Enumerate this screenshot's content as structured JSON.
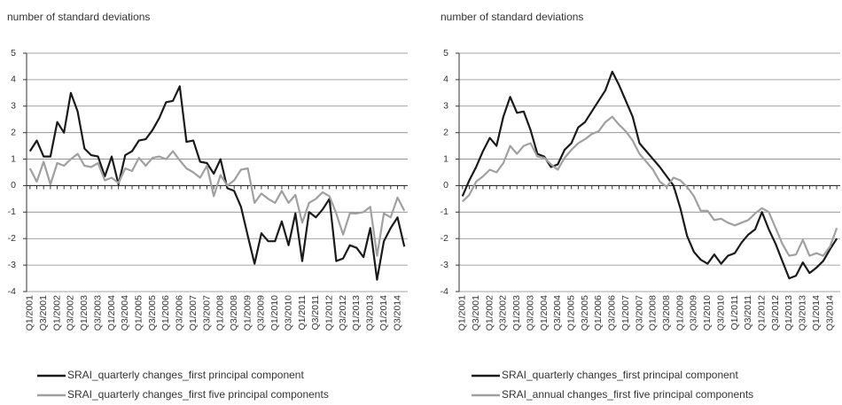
{
  "chart_data": [
    {
      "type": "line",
      "title": "number of standard deviations",
      "categories": [
        "Q1/2001",
        null,
        "Q3/2001",
        null,
        "Q1/2002",
        null,
        "Q3/2002",
        null,
        "Q1/2003",
        null,
        "Q3/2003",
        null,
        "Q1/2004",
        null,
        "Q3/2004",
        null,
        "Q1/2005",
        null,
        "Q3/2005",
        null,
        "Q1/2006",
        null,
        "Q3/2006",
        null,
        "Q1/2007",
        null,
        "Q3/2007",
        null,
        "Q1/2008",
        null,
        "Q3/2008",
        null,
        "Q1/2009",
        null,
        "Q3/2009",
        null,
        "Q1/2010",
        null,
        "Q3/2010",
        null,
        "Q1/2011",
        null,
        "Q3/2011",
        null,
        "Q1/2012",
        null,
        "Q3/2012",
        null,
        "Q1/2013",
        null,
        "Q3/2013",
        null,
        "Q1/2014",
        null,
        "Q3/2014",
        null
      ],
      "series": [
        {
          "name": "SRAI_quarterly changes_first principal component",
          "color": "#1a1a1a",
          "values": [
            1.3,
            1.7,
            1.1,
            1.1,
            2.4,
            2.0,
            3.5,
            2.8,
            1.4,
            1.15,
            1.1,
            0.35,
            1.1,
            0.05,
            1.15,
            1.3,
            1.7,
            1.75,
            2.1,
            2.55,
            3.15,
            3.2,
            3.75,
            1.65,
            1.7,
            0.9,
            0.85,
            0.45,
            1.0,
            -0.1,
            -0.2,
            -0.8,
            -1.9,
            -2.95,
            -1.8,
            -2.1,
            -2.1,
            -1.35,
            -2.25,
            -1.05,
            -2.85,
            -1.0,
            -1.2,
            -0.9,
            -0.5,
            -2.85,
            -2.75,
            -2.25,
            -2.35,
            -2.7,
            -1.6,
            -3.55,
            -2.1,
            -1.6,
            -1.2,
            -2.3
          ]
        },
        {
          "name": "SRAI_quarterly changes_first five principal components",
          "color": "#a0a0a0",
          "values": [
            0.65,
            0.15,
            0.9,
            0.05,
            0.85,
            0.75,
            1.0,
            1.2,
            0.75,
            0.7,
            0.85,
            0.2,
            0.3,
            0.1,
            0.65,
            0.55,
            1.05,
            0.75,
            1.05,
            1.1,
            1.0,
            1.3,
            0.95,
            0.65,
            0.5,
            0.3,
            0.75,
            -0.4,
            0.4,
            0.0,
            0.2,
            0.6,
            0.65,
            -0.65,
            -0.3,
            -0.5,
            -0.65,
            -0.2,
            -0.65,
            -0.35,
            -1.4,
            -0.65,
            -0.5,
            -0.25,
            -0.4,
            -1.05,
            -1.85,
            -1.05,
            -1.05,
            -1.0,
            -0.8,
            -2.65,
            -1.05,
            -1.2,
            -0.45,
            -0.95
          ]
        }
      ],
      "ylim": [
        -4,
        5
      ],
      "yticks": [
        -4,
        -3,
        -2,
        -1,
        0,
        1,
        2,
        3,
        4,
        5
      ],
      "grid": true,
      "legend": "bottom"
    },
    {
      "type": "line",
      "title": "number of standard deviations",
      "categories": [
        "Q1/2001",
        null,
        "Q3/2001",
        null,
        "Q1/2002",
        null,
        "Q3/2002",
        null,
        "Q1/2003",
        null,
        "Q3/2003",
        null,
        "Q1/2004",
        null,
        "Q3/2004",
        null,
        "Q1/2005",
        null,
        "Q3/2005",
        null,
        "Q1/2006",
        null,
        "Q3/2006",
        null,
        "Q1/2007",
        null,
        "Q3/2007",
        null,
        "Q1/2008",
        null,
        "Q3/2008",
        null,
        "Q1/2009",
        null,
        "Q3/2009",
        null,
        "Q1/2010",
        null,
        "Q3/2010",
        null,
        "Q1/2011",
        null,
        "Q3/2011",
        null,
        "Q1/2012",
        null,
        "Q3/2012",
        null,
        "Q1/2013",
        null,
        "Q3/2013",
        null,
        "Q1/2014",
        null,
        "Q3/2014",
        null
      ],
      "series": [
        {
          "name": "SRAI_quarterly changes_first principal component",
          "color": "#1a1a1a",
          "values": [
            -0.4,
            0.2,
            0.7,
            1.3,
            1.8,
            1.5,
            2.6,
            3.35,
            2.75,
            2.8,
            2.1,
            1.2,
            1.1,
            0.7,
            0.8,
            1.35,
            1.6,
            2.2,
            2.4,
            2.8,
            3.2,
            3.6,
            4.3,
            3.8,
            3.2,
            2.6,
            1.6,
            1.3,
            1.0,
            0.7,
            0.35,
            0.0,
            -0.85,
            -1.9,
            -2.5,
            -2.8,
            -2.95,
            -2.6,
            -2.95,
            -2.65,
            -2.55,
            -2.15,
            -1.85,
            -1.65,
            -1.0,
            -1.65,
            -2.2,
            -2.85,
            -3.5,
            -3.4,
            -2.9,
            -3.3,
            -3.1,
            -2.85,
            -2.4,
            -2.0
          ]
        },
        {
          "name": "SRAI_annual changes_first five principal components",
          "color": "#a0a0a0",
          "values": [
            -0.6,
            -0.35,
            0.15,
            0.35,
            0.6,
            0.5,
            0.85,
            1.5,
            1.2,
            1.5,
            1.6,
            1.1,
            1.05,
            0.8,
            0.6,
            1.05,
            1.35,
            1.6,
            1.75,
            1.95,
            2.05,
            2.4,
            2.6,
            2.3,
            2.05,
            1.7,
            1.2,
            0.9,
            0.6,
            0.15,
            -0.05,
            0.3,
            0.2,
            -0.05,
            -0.4,
            -0.95,
            -0.95,
            -1.3,
            -1.25,
            -1.4,
            -1.5,
            -1.4,
            -1.3,
            -1.05,
            -0.85,
            -1.0,
            -1.6,
            -2.2,
            -2.65,
            -2.6,
            -2.05,
            -2.65,
            -2.55,
            -2.65,
            -2.3,
            -1.6
          ]
        }
      ],
      "ylim": [
        -4,
        5
      ],
      "yticks": [
        -4,
        -3,
        -2,
        -1,
        0,
        1,
        2,
        3,
        4,
        5
      ],
      "grid": true,
      "legend": "bottom"
    }
  ]
}
